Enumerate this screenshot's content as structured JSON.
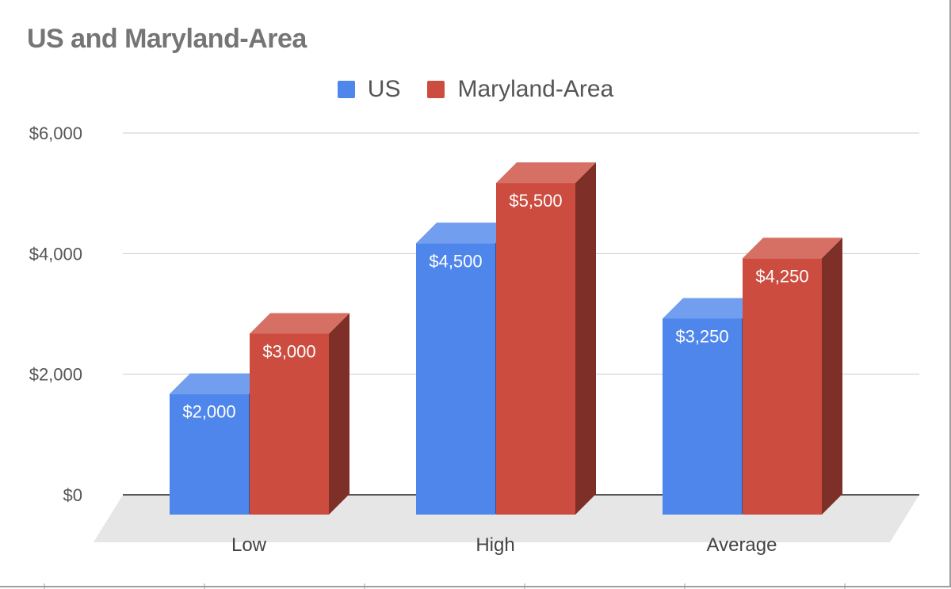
{
  "chart_data": {
    "type": "bar",
    "title": "US and Maryland-Area",
    "categories": [
      "Low",
      "High",
      "Average"
    ],
    "series": [
      {
        "name": "US",
        "values": [
          2000,
          4500,
          3250
        ],
        "value_labels": [
          "$2,000",
          "$4,500",
          "$3,250"
        ],
        "color": "#4f86ec"
      },
      {
        "name": "Maryland-Area",
        "values": [
          3000,
          5500,
          4250
        ],
        "value_labels": [
          "$3,000",
          "$5,500",
          "$4,250"
        ],
        "color": "#cc4c3f"
      }
    ],
    "ylim": [
      0,
      6000
    ],
    "yticks": [
      0,
      2000,
      4000,
      6000
    ],
    "ytick_labels": [
      "$0",
      "$2,000",
      "$4,000",
      "$6,000"
    ],
    "xlabel": "",
    "ylabel": "",
    "grid": true,
    "legend_position": "top",
    "style": "3d"
  }
}
